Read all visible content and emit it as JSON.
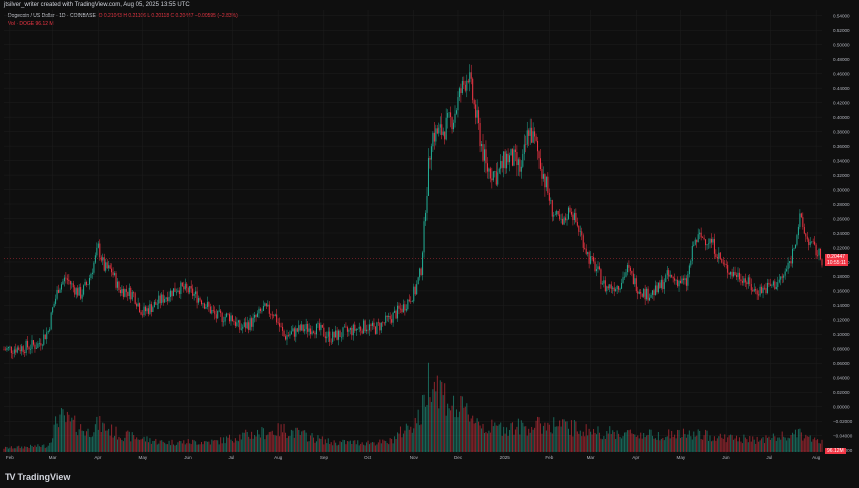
{
  "header": {
    "author_line": "jtsilver_writer created with TradingView.com, Aug 05, 2025 13:55 UTC"
  },
  "legend": {
    "symbol": "Dogecoin / US Dollar · 1D · COINBASE",
    "ohlc": "O 0.21043  H 0.21106  L 0.20118  C 0.20447  −0.00595 (−2.83%)",
    "volume": "Vol · DOGE  96.12 M"
  },
  "price_tag": {
    "price": "0.20447",
    "countdown": "10:55:11"
  },
  "volume_tag": "96.12M",
  "brand": "TradingView",
  "colors": {
    "up": "#22ab94",
    "down": "#f23645",
    "grid": "#1e1e1e",
    "axis_text": "#b2b5be",
    "background": "#0f0f0f"
  },
  "chart_data": {
    "type": "candlestick",
    "x_ticks": [
      "Feb",
      "Mar",
      "Apr",
      "May",
      "Jun",
      "Jul",
      "Aug",
      "Sep",
      "Oct",
      "Nov",
      "Dec",
      "2025",
      "Feb",
      "Mar",
      "Apr",
      "May",
      "Jun",
      "Jul",
      "Aug"
    ],
    "y_ticks": [
      "0.54000",
      "0.52000",
      "0.50000",
      "0.48000",
      "0.46000",
      "0.44000",
      "0.42000",
      "0.40000",
      "0.38000",
      "0.36000",
      "0.34000",
      "0.32000",
      "0.30000",
      "0.28000",
      "0.26000",
      "0.24000",
      "0.22000",
      "0.20000",
      "0.18000",
      "0.16000",
      "0.14000",
      "0.12000",
      "0.10000",
      "0.08000",
      "0.06000",
      "0.04000",
      "0.02000",
      "0.00000",
      "−0.02000",
      "−0.04000",
      "−0.06000"
    ],
    "ylim": [
      -0.068,
      0.548
    ],
    "x_range": [
      "2024-01-28",
      "2025-08-05"
    ],
    "series": [
      {
        "name": "Dogecoin / US Dollar",
        "close_path": [
          [
            "2024-01-28",
            0.079
          ],
          [
            "2024-02-10",
            0.082
          ],
          [
            "2024-02-20",
            0.086
          ],
          [
            "2024-02-27",
            0.105
          ],
          [
            "2024-03-01",
            0.135
          ],
          [
            "2024-03-05",
            0.165
          ],
          [
            "2024-03-10",
            0.178
          ],
          [
            "2024-03-15",
            0.165
          ],
          [
            "2024-03-20",
            0.155
          ],
          [
            "2024-03-25",
            0.172
          ],
          [
            "2024-03-30",
            0.205
          ],
          [
            "2024-04-01",
            0.22
          ],
          [
            "2024-04-05",
            0.192
          ],
          [
            "2024-04-10",
            0.188
          ],
          [
            "2024-04-15",
            0.162
          ],
          [
            "2024-04-20",
            0.16
          ],
          [
            "2024-04-25",
            0.155
          ],
          [
            "2024-05-01",
            0.13
          ],
          [
            "2024-05-10",
            0.142
          ],
          [
            "2024-05-20",
            0.158
          ],
          [
            "2024-05-25",
            0.165
          ],
          [
            "2024-06-01",
            0.16
          ],
          [
            "2024-06-10",
            0.148
          ],
          [
            "2024-06-20",
            0.124
          ],
          [
            "2024-06-30",
            0.125
          ],
          [
            "2024-07-06",
            0.108
          ],
          [
            "2024-07-15",
            0.118
          ],
          [
            "2024-07-22",
            0.135
          ],
          [
            "2024-07-29",
            0.13
          ],
          [
            "2024-08-05",
            0.097
          ],
          [
            "2024-08-15",
            0.106
          ],
          [
            "2024-08-25",
            0.11
          ],
          [
            "2024-09-06",
            0.096
          ],
          [
            "2024-09-15",
            0.102
          ],
          [
            "2024-09-30",
            0.112
          ],
          [
            "2024-10-05",
            0.107
          ],
          [
            "2024-10-15",
            0.12
          ],
          [
            "2024-10-25",
            0.138
          ],
          [
            "2024-11-02",
            0.16
          ],
          [
            "2024-11-06",
            0.19
          ],
          [
            "2024-11-10",
            0.305
          ],
          [
            "2024-11-13",
            0.375
          ],
          [
            "2024-11-20",
            0.38
          ],
          [
            "2024-11-28",
            0.4
          ],
          [
            "2024-12-02",
            0.43
          ],
          [
            "2024-12-08",
            0.46
          ],
          [
            "2024-12-12",
            0.415
          ],
          [
            "2024-12-20",
            0.33
          ],
          [
            "2024-12-28",
            0.32
          ],
          [
            "2025-01-03",
            0.345
          ],
          [
            "2025-01-08",
            0.34
          ],
          [
            "2025-01-13",
            0.325
          ],
          [
            "2025-01-18",
            0.385
          ],
          [
            "2025-01-22",
            0.365
          ],
          [
            "2025-01-27",
            0.33
          ],
          [
            "2025-02-03",
            0.27
          ],
          [
            "2025-02-10",
            0.25
          ],
          [
            "2025-02-15",
            0.275
          ],
          [
            "2025-02-22",
            0.24
          ],
          [
            "2025-02-28",
            0.205
          ],
          [
            "2025-03-05",
            0.19
          ],
          [
            "2025-03-11",
            0.165
          ],
          [
            "2025-03-20",
            0.168
          ],
          [
            "2025-03-26",
            0.19
          ],
          [
            "2025-04-02",
            0.165
          ],
          [
            "2025-04-08",
            0.155
          ],
          [
            "2025-04-15",
            0.16
          ],
          [
            "2025-04-22",
            0.18
          ],
          [
            "2025-04-28",
            0.175
          ],
          [
            "2025-05-05",
            0.17
          ],
          [
            "2025-05-10",
            0.225
          ],
          [
            "2025-05-14",
            0.235
          ],
          [
            "2025-05-22",
            0.228
          ],
          [
            "2025-05-30",
            0.195
          ],
          [
            "2025-06-05",
            0.185
          ],
          [
            "2025-06-12",
            0.18
          ],
          [
            "2025-06-20",
            0.16
          ],
          [
            "2025-06-27",
            0.163
          ],
          [
            "2025-07-05",
            0.17
          ],
          [
            "2025-07-10",
            0.18
          ],
          [
            "2025-07-15",
            0.205
          ],
          [
            "2025-07-21",
            0.26
          ],
          [
            "2025-07-25",
            0.235
          ],
          [
            "2025-07-30",
            0.22
          ],
          [
            "2025-08-05",
            0.204
          ]
        ]
      },
      {
        "name": "Vol · DOGE",
        "volume_level_path": [
          [
            "2024-01-28",
            0.05
          ],
          [
            "2024-02-27",
            0.08
          ],
          [
            "2024-03-05",
            0.45
          ],
          [
            "2024-03-25",
            0.25
          ],
          [
            "2024-04-01",
            0.35
          ],
          [
            "2024-04-15",
            0.22
          ],
          [
            "2024-05-15",
            0.12
          ],
          [
            "2024-06-20",
            0.13
          ],
          [
            "2024-07-06",
            0.2
          ],
          [
            "2024-08-05",
            0.28
          ],
          [
            "2024-09-06",
            0.12
          ],
          [
            "2024-10-15",
            0.12
          ],
          [
            "2024-11-06",
            0.45
          ],
          [
            "2024-11-12",
            1.0
          ],
          [
            "2024-11-28",
            0.55
          ],
          [
            "2024-12-08",
            0.5
          ],
          [
            "2024-12-20",
            0.3
          ],
          [
            "2025-01-18",
            0.32
          ],
          [
            "2025-02-03",
            0.35
          ],
          [
            "2025-03-05",
            0.25
          ],
          [
            "2025-04-08",
            0.22
          ],
          [
            "2025-05-10",
            0.22
          ],
          [
            "2025-06-20",
            0.15
          ],
          [
            "2025-07-21",
            0.22
          ],
          [
            "2025-08-05",
            0.12
          ]
        ]
      }
    ]
  }
}
